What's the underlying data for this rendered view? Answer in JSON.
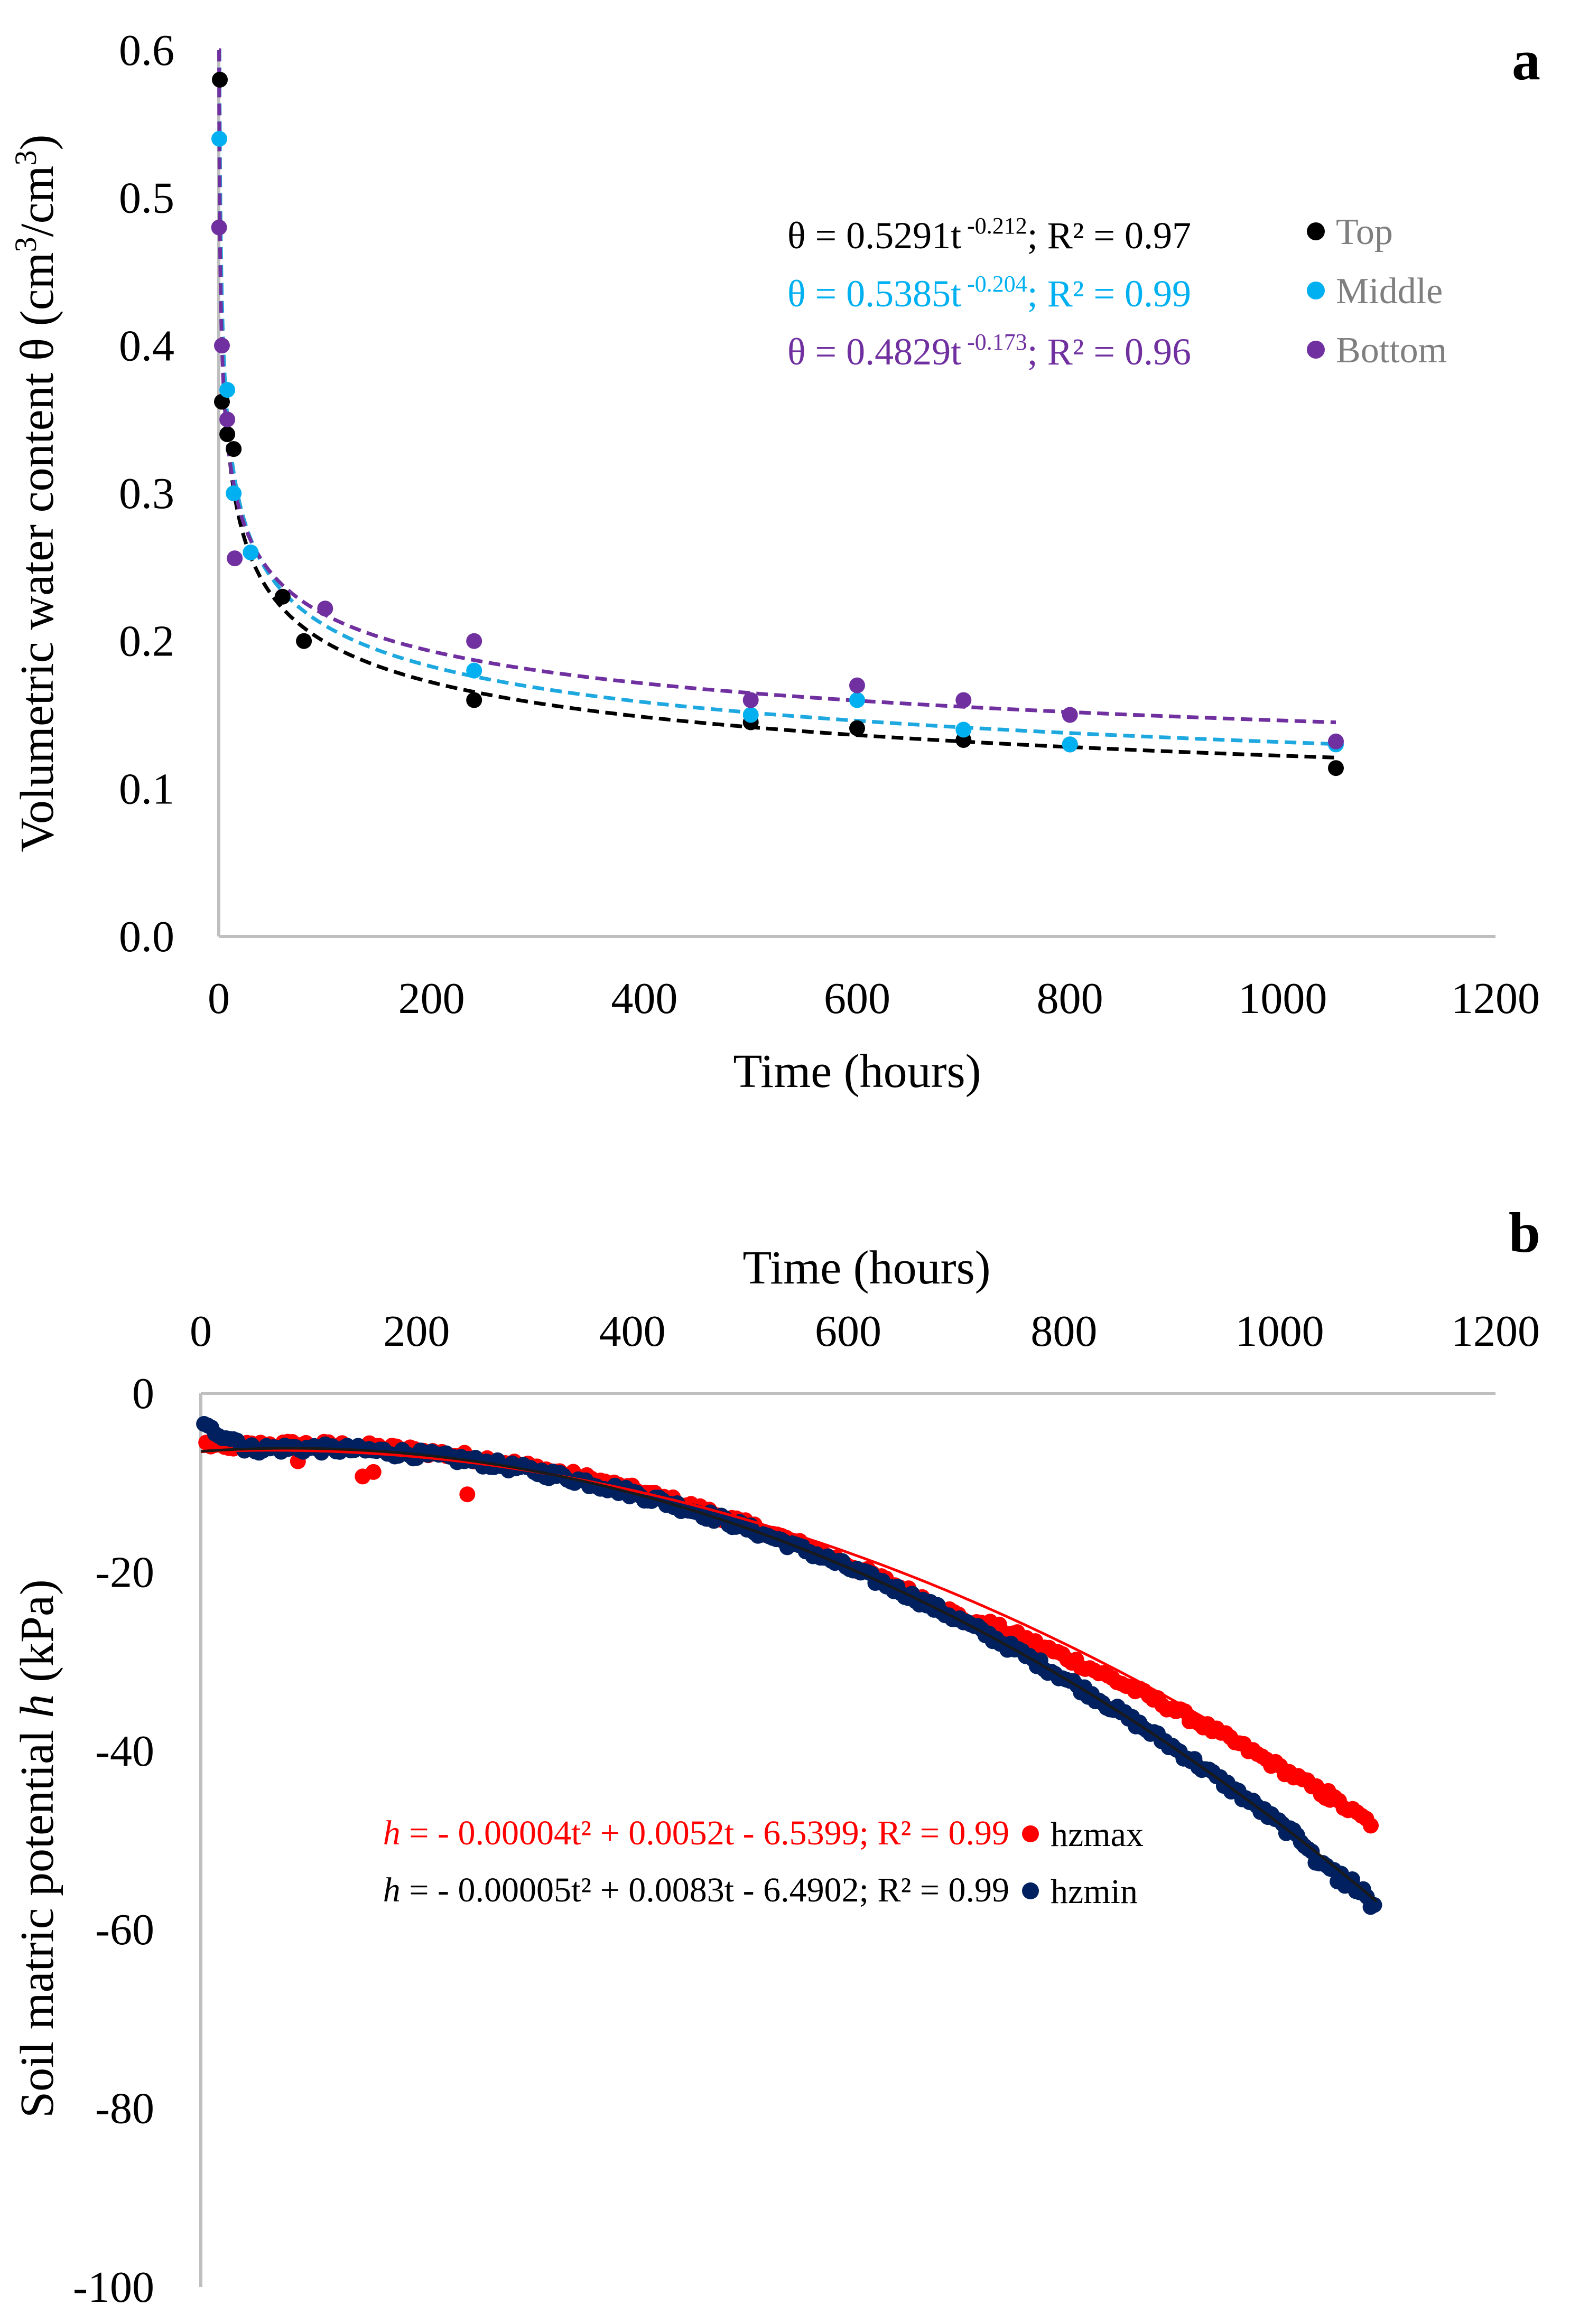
{
  "chart_data": [
    {
      "panel_label": "a",
      "type": "scatter",
      "title": "",
      "xlabel": "Time (hours)",
      "ylabel_parts": [
        "Volumetric water content θ (cm",
        "3",
        "/cm",
        "3",
        ")"
      ],
      "xlim": [
        0,
        1200
      ],
      "ylim": [
        0.0,
        0.6
      ],
      "x_ticks": [
        0,
        200,
        400,
        600,
        800,
        1000,
        1200
      ],
      "y_ticks": [
        0.0,
        0.1,
        0.2,
        0.3,
        0.4,
        0.5,
        0.6
      ],
      "y_tick_labels": [
        "0.0",
        "0.1",
        "0.2",
        "0.3",
        "0.4",
        "0.5",
        "0.6"
      ],
      "series": [
        {
          "name": "Top",
          "color": "#000000",
          "trend_color": "#000000",
          "fit": {
            "a": 0.5291,
            "b": -0.212
          },
          "equation": {
            "pre": "θ = 0.5291t",
            "sup": " -0.212",
            "post": "; R² = 0.97"
          },
          "points": [
            [
              1,
              0.58
            ],
            [
              3,
              0.362
            ],
            [
              8,
              0.34
            ],
            [
              14,
              0.33
            ],
            [
              60,
              0.23
            ],
            [
              80,
              0.2
            ],
            [
              240,
              0.16
            ],
            [
              500,
              0.145
            ],
            [
              600,
              0.141
            ],
            [
              700,
              0.133
            ],
            [
              800,
              0.13
            ],
            [
              1050,
              0.114
            ]
          ]
        },
        {
          "name": "Middle",
          "color": "#00b0f0",
          "trend_color": "#1ea8e0",
          "fit": {
            "a": 0.5385,
            "b": -0.204
          },
          "equation": {
            "pre": "θ = 0.5385t",
            "sup": " -0.204",
            "post": "; R² = 0.99"
          },
          "points": [
            [
              0.5,
              0.54
            ],
            [
              8,
              0.37
            ],
            [
              14,
              0.3
            ],
            [
              30,
              0.26
            ],
            [
              240,
              0.18
            ],
            [
              500,
              0.15
            ],
            [
              600,
              0.16
            ],
            [
              700,
              0.14
            ],
            [
              800,
              0.13
            ],
            [
              1050,
              0.13
            ]
          ]
        },
        {
          "name": "Bottom",
          "color": "#7030a0",
          "trend_color": "#7030a0",
          "fit": {
            "a": 0.4829,
            "b": -0.173
          },
          "equation": {
            "pre": "θ = 0.4829t",
            "sup": " -0.173",
            "post": "; R² = 0.96"
          },
          "points": [
            [
              0.3,
              0.48
            ],
            [
              3,
              0.4
            ],
            [
              8,
              0.35
            ],
            [
              15,
              0.256
            ],
            [
              100,
              0.222
            ],
            [
              240,
              0.2
            ],
            [
              500,
              0.16
            ],
            [
              600,
              0.17
            ],
            [
              700,
              0.16
            ],
            [
              800,
              0.15
            ],
            [
              1050,
              0.132
            ]
          ]
        }
      ]
    },
    {
      "panel_label": "b",
      "type": "scatter",
      "title": "",
      "xlabel": "Time (hours)",
      "ylabel_parts": [
        "Soil matric potential ",
        "h",
        " (kPa)"
      ],
      "xlim": [
        0,
        1200
      ],
      "ylim": [
        -100,
        0
      ],
      "x_ticks": [
        0,
        200,
        400,
        600,
        800,
        1000,
        1200
      ],
      "y_ticks": [
        0,
        -20,
        -40,
        -60,
        -80,
        -100
      ],
      "series": [
        {
          "name": "hzmax",
          "color": "#ff0000",
          "trend_color": "#ff0000",
          "fit": {
            "a": -4e-05,
            "b": 0.0052,
            "c": -6.5399
          },
          "equation": {
            "italic": "h",
            "text": " = - 0.00004t² + 0.0052t - 6.5399; R² = 0.99"
          }
        },
        {
          "name": "hzmin",
          "color": "#002060",
          "trend_color": "#1a1a1a",
          "fit": {
            "a": -5e-05,
            "b": 0.0083,
            "c": -6.4902
          },
          "equation": {
            "italic": "h",
            "text": " = - 0.00005t² + 0.0083t - 6.4902; R² = 0.99"
          }
        }
      ]
    }
  ]
}
